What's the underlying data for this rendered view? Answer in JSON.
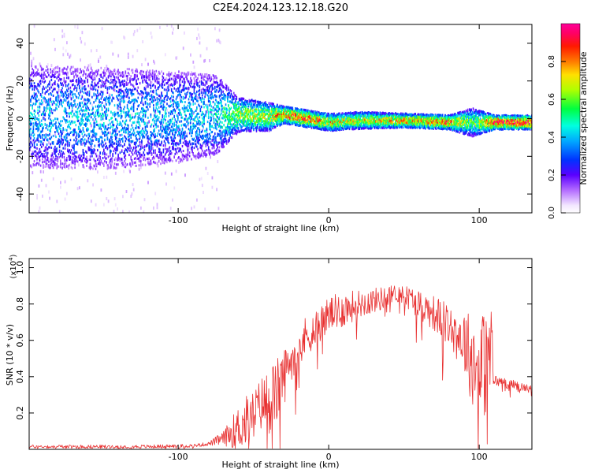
{
  "title": "C2E4.2024.123.12.18.G20",
  "chart_data": [
    {
      "type": "heatmap",
      "xlabel": "Height of straight line (km)",
      "ylabel": "Frequency (Hz)",
      "xlim": [
        -199,
        135
      ],
      "ylim": [
        -50,
        50
      ],
      "x_ticks": [
        -100,
        0,
        100
      ],
      "y_ticks": [
        -40,
        -20,
        0,
        20,
        40
      ],
      "grid": false,
      "colorbar": {
        "label": "Normalized spectral amplitude",
        "range": [
          0.0,
          1.0
        ],
        "ticks": [
          0.0,
          0.2,
          0.4,
          0.6,
          0.8
        ],
        "tick_labels": [
          "0.0",
          "0.2",
          "0.4",
          "0.6",
          "0.8"
        ],
        "colormap": "white-purple-blue-cyan-green-yellow-orange-red-magenta"
      },
      "ridge": [
        {
          "x": -195,
          "f": 1,
          "spread": 18,
          "amp": 0.45
        },
        {
          "x": -150,
          "f": 0,
          "spread": 18,
          "amp": 0.45
        },
        {
          "x": -100,
          "f": 1,
          "spread": 16,
          "amp": 0.45
        },
        {
          "x": -75,
          "f": 2,
          "spread": 14,
          "amp": 0.5
        },
        {
          "x": -60,
          "f": 2,
          "spread": 6,
          "amp": 0.7
        },
        {
          "x": -40,
          "f": 1,
          "spread": 5,
          "amp": 0.75
        },
        {
          "x": -30,
          "f": 2,
          "spread": 3,
          "amp": 0.9
        },
        {
          "x": -15,
          "f": 0,
          "spread": 3,
          "amp": 0.95
        },
        {
          "x": 0,
          "f": -2,
          "spread": 3,
          "amp": 0.8
        },
        {
          "x": 20,
          "f": -1,
          "spread": 3,
          "amp": 0.75
        },
        {
          "x": 50,
          "f": -1,
          "spread": 2.5,
          "amp": 0.85
        },
        {
          "x": 80,
          "f": -2,
          "spread": 2.5,
          "amp": 0.9
        },
        {
          "x": 95,
          "f": -2,
          "spread": 5,
          "amp": 0.6
        },
        {
          "x": 110,
          "f": -2,
          "spread": 2.5,
          "amp": 1.0
        },
        {
          "x": 135,
          "f": -2,
          "spread": 2.5,
          "amp": 1.0
        }
      ]
    },
    {
      "type": "line",
      "xlabel": "Height of straight line (km)",
      "ylabel": "SNR (10 * v/v)",
      "y_multiplier": "(x10^4)",
      "xlim": [
        -199,
        135
      ],
      "ylim": [
        0,
        1.05
      ],
      "x_ticks": [
        -100,
        0,
        100
      ],
      "y_ticks": [
        0.2,
        0.4,
        0.6,
        0.8,
        1.0
      ],
      "grid": false,
      "series": [
        {
          "color": "#e83030",
          "envelope_x": [
            -199,
            -170,
            -120,
            -90,
            -80,
            -70,
            -65,
            -60,
            -55,
            -50,
            -45,
            -40,
            -35,
            -30,
            -25,
            -20,
            -15,
            -10,
            -5,
            0,
            10,
            20,
            30,
            40,
            45,
            50,
            60,
            70,
            80,
            90,
            95,
            100,
            105,
            108,
            110,
            120,
            135
          ],
          "envelope_y": [
            0.015,
            0.015,
            0.015,
            0.02,
            0.03,
            0.06,
            0.09,
            0.12,
            0.15,
            0.2,
            0.25,
            0.27,
            0.3,
            0.42,
            0.5,
            0.56,
            0.62,
            0.66,
            0.7,
            0.74,
            0.77,
            0.8,
            0.82,
            0.84,
            0.86,
            0.85,
            0.8,
            0.75,
            0.68,
            0.6,
            0.5,
            0.45,
            0.48,
            0.5,
            0.38,
            0.36,
            0.33
          ],
          "noise_y": [
            0.01,
            0.01,
            0.01,
            0.01,
            0.01,
            0.04,
            0.08,
            0.12,
            0.15,
            0.12,
            0.15,
            0.18,
            0.2,
            0.12,
            0.12,
            0.12,
            0.12,
            0.1,
            0.1,
            0.1,
            0.1,
            0.08,
            0.07,
            0.06,
            0.05,
            0.06,
            0.08,
            0.1,
            0.12,
            0.18,
            0.25,
            0.3,
            0.3,
            0.35,
            0.03,
            0.03,
            0.02
          ]
        }
      ]
    }
  ]
}
